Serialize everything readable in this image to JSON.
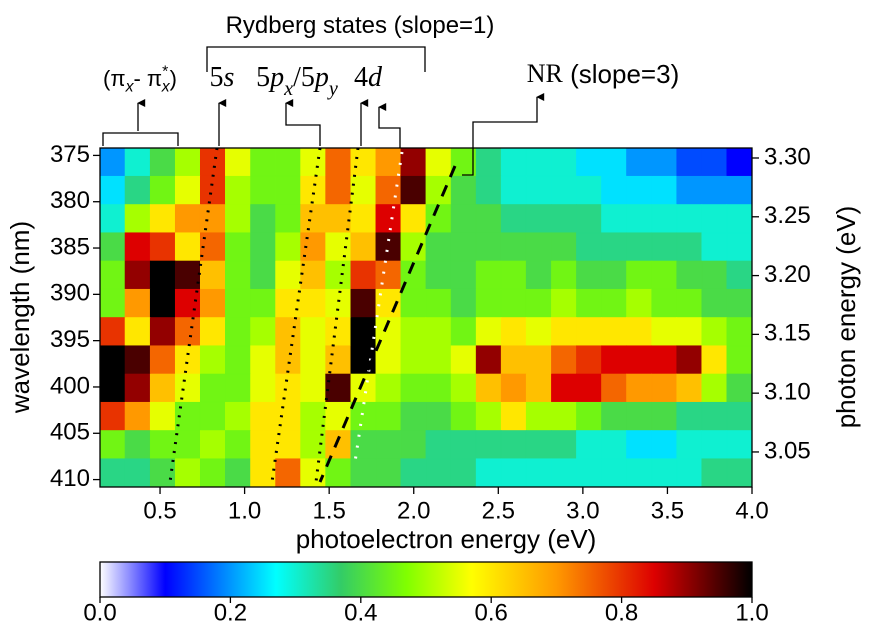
{
  "chart_data": {
    "type": "heatmap",
    "xlabel": "photoelectron energy (eV)",
    "ylabel": "wavelength (nm)",
    "y2label": "photon energy (eV)",
    "xlim": [
      0.145,
      4.0
    ],
    "xticks": [
      0.5,
      {
        "value": 1,
        "label": "1.0"
      },
      1.5,
      {
        "value": 2,
        "label": "2.0"
      },
      2.5,
      {
        "value": 3,
        "label": "3.0"
      },
      3.5,
      {
        "value": 4,
        "label": "4.0"
      }
    ],
    "ylim": [
      374.2,
      410.8
    ],
    "yticks": [
      375,
      380,
      385,
      390,
      395,
      400,
      405,
      410
    ],
    "y2lim": [
      3.3085,
      3.0202
    ],
    "y2ticks": [
      {
        "value": 3.3,
        "label": "3.30"
      },
      3.25,
      {
        "value": 3.2,
        "label": "3.20"
      },
      3.15,
      {
        "value": 3.1,
        "label": "3.10"
      },
      3.05
    ],
    "x_bins": [
      0.145,
      0.293,
      0.442,
      0.59,
      0.738,
      0.886,
      1.035,
      1.183,
      1.331,
      1.479,
      1.628,
      1.776,
      1.924,
      2.072,
      2.221,
      2.369,
      2.517,
      2.665,
      2.814,
      2.962,
      3.11,
      3.258,
      3.407,
      3.555,
      3.703,
      3.851,
      4.0
    ],
    "y_bins": [
      374.2,
      377.25,
      380.3,
      383.35,
      386.4,
      389.45,
      392.5,
      395.55,
      398.6,
      401.65,
      404.7,
      407.75,
      410.8
    ],
    "z": [
      [
        0.2,
        0.3,
        0.4,
        0.5,
        0.8,
        0.55,
        0.45,
        0.45,
        0.55,
        0.75,
        0.6,
        0.7,
        0.9,
        0.55,
        0.45,
        0.35,
        0.3,
        0.3,
        0.3,
        0.25,
        0.25,
        0.2,
        0.2,
        0.15,
        0.15,
        0.1
      ],
      [
        0.25,
        0.35,
        0.45,
        0.55,
        0.8,
        0.5,
        0.45,
        0.45,
        0.6,
        0.75,
        0.55,
        0.75,
        0.95,
        0.5,
        0.4,
        0.35,
        0.3,
        0.3,
        0.3,
        0.3,
        0.25,
        0.25,
        0.25,
        0.2,
        0.2,
        0.2
      ],
      [
        0.3,
        0.5,
        0.6,
        0.7,
        0.7,
        0.5,
        0.4,
        0.45,
        0.65,
        0.65,
        0.6,
        0.85,
        0.6,
        0.45,
        0.4,
        0.4,
        0.35,
        0.35,
        0.35,
        0.35,
        0.3,
        0.3,
        0.3,
        0.3,
        0.3,
        0.3
      ],
      [
        0.4,
        0.85,
        0.8,
        0.6,
        0.75,
        0.45,
        0.4,
        0.5,
        0.7,
        0.55,
        0.65,
        0.95,
        0.5,
        0.4,
        0.4,
        0.4,
        0.4,
        0.4,
        0.4,
        0.35,
        0.35,
        0.35,
        0.35,
        0.35,
        0.3,
        0.3
      ],
      [
        0.45,
        0.9,
        1.0,
        0.95,
        0.65,
        0.45,
        0.4,
        0.55,
        0.65,
        0.5,
        0.8,
        0.75,
        0.45,
        0.4,
        0.4,
        0.45,
        0.45,
        0.4,
        0.45,
        0.4,
        0.4,
        0.45,
        0.45,
        0.4,
        0.4,
        0.35
      ],
      [
        0.45,
        0.7,
        1.0,
        0.85,
        0.7,
        0.45,
        0.45,
        0.6,
        0.6,
        0.55,
        0.95,
        0.6,
        0.45,
        0.45,
        0.4,
        0.45,
        0.45,
        0.45,
        0.5,
        0.45,
        0.45,
        0.5,
        0.45,
        0.45,
        0.4,
        0.4
      ],
      [
        0.8,
        0.6,
        0.9,
        0.75,
        0.6,
        0.45,
        0.5,
        0.65,
        0.55,
        0.6,
        1.0,
        0.55,
        0.5,
        0.5,
        0.45,
        0.55,
        0.6,
        0.55,
        0.6,
        0.6,
        0.6,
        0.6,
        0.55,
        0.55,
        0.5,
        0.45
      ],
      [
        1.0,
        0.95,
        0.75,
        0.6,
        0.5,
        0.45,
        0.55,
        0.65,
        0.55,
        0.65,
        1.0,
        0.55,
        0.5,
        0.5,
        0.55,
        0.9,
        0.65,
        0.65,
        0.75,
        0.8,
        0.85,
        0.85,
        0.85,
        0.9,
        0.6,
        0.45
      ],
      [
        1.0,
        0.9,
        0.65,
        0.55,
        0.45,
        0.45,
        0.55,
        0.6,
        0.55,
        0.95,
        0.55,
        0.5,
        0.45,
        0.45,
        0.5,
        0.65,
        0.7,
        0.65,
        0.85,
        0.85,
        0.75,
        0.7,
        0.7,
        0.65,
        0.5,
        0.4
      ],
      [
        0.8,
        0.7,
        0.55,
        0.45,
        0.45,
        0.5,
        0.6,
        0.6,
        0.5,
        0.55,
        0.45,
        0.45,
        0.4,
        0.4,
        0.45,
        0.5,
        0.6,
        0.5,
        0.5,
        0.45,
        0.4,
        0.4,
        0.4,
        0.35,
        0.35,
        0.35
      ],
      [
        0.45,
        0.4,
        0.45,
        0.45,
        0.5,
        0.45,
        0.6,
        0.6,
        0.5,
        0.65,
        0.4,
        0.4,
        0.4,
        0.35,
        0.35,
        0.35,
        0.35,
        0.35,
        0.35,
        0.3,
        0.3,
        0.25,
        0.25,
        0.3,
        0.3,
        0.3
      ],
      [
        0.35,
        0.35,
        0.4,
        0.5,
        0.45,
        0.4,
        0.6,
        0.75,
        0.55,
        0.45,
        0.4,
        0.4,
        0.35,
        0.35,
        0.35,
        0.3,
        0.3,
        0.3,
        0.3,
        0.3,
        0.3,
        0.3,
        0.3,
        0.3,
        0.35,
        0.35
      ]
    ],
    "clim": [
      0,
      1
    ],
    "cticks": [
      {
        "value": 0,
        "label": "0.0"
      },
      0.2,
      0.4,
      0.6,
      0.8,
      {
        "value": 1,
        "label": "1.0"
      }
    ],
    "colormap": [
      [
        0,
        "#ffffff"
      ],
      [
        0.1,
        "#0000ff"
      ],
      [
        0.27,
        "#00ffff"
      ],
      [
        0.37,
        "#33cc66"
      ],
      [
        0.47,
        "#80ff00"
      ],
      [
        0.57,
        "#ffff00"
      ],
      [
        0.7,
        "#ff9900"
      ],
      [
        0.85,
        "#dd0000"
      ],
      [
        1,
        "#000000"
      ]
    ],
    "annotations": [
      {
        "font": "sans",
        "parts": [
          {
            "t": "Rydberg states (slope=1)"
          }
        ]
      },
      {
        "font": "sans",
        "parts": [
          {
            "t": "(π"
          },
          {
            "t": "x",
            "sub": true,
            "italic": true
          },
          {
            "t": "- π"
          },
          {
            "t": "*",
            "sup": true
          },
          {
            "t": "x",
            "sub": true,
            "italic": true
          },
          {
            "t": ")"
          }
        ]
      },
      {
        "font": "serif",
        "parts": [
          {
            "t": "5"
          },
          {
            "t": "s",
            "italic": true
          }
        ]
      },
      {
        "font": "serif",
        "parts": [
          {
            "t": "5"
          },
          {
            "t": "p",
            "italic": true
          },
          {
            "t": "x",
            "sub": true,
            "italic": true
          },
          {
            "t": "/5"
          },
          {
            "t": "p",
            "italic": true
          },
          {
            "t": "y",
            "sub": true,
            "italic": true
          }
        ]
      },
      {
        "font": "serif",
        "parts": [
          {
            "t": "4"
          },
          {
            "t": "d",
            "italic": true
          }
        ]
      },
      {
        "font": "sans",
        "parts": [
          {
            "t": "NR",
            "serif": true
          },
          {
            "t": " (slope=3)"
          }
        ]
      }
    ]
  }
}
